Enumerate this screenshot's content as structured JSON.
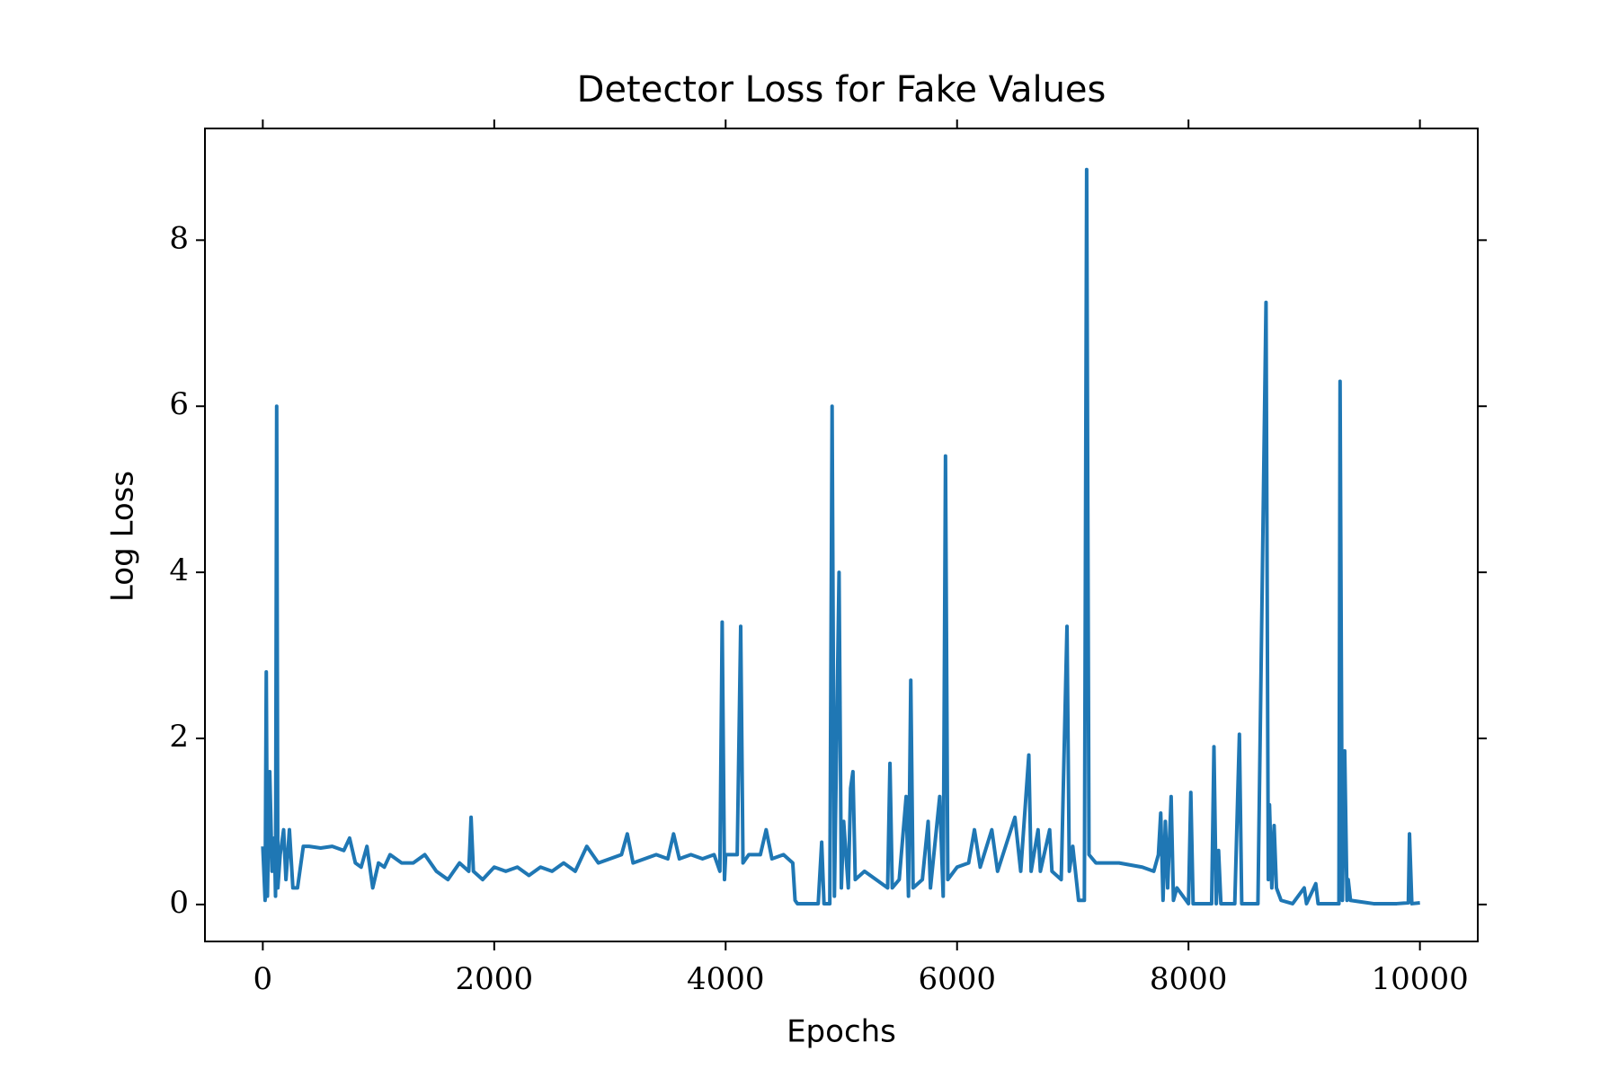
{
  "chart_data": {
    "type": "line",
    "title": "Detector Loss for Fake Values",
    "xlabel": "Epochs",
    "ylabel": "Log Loss",
    "x": [
      0,
      20,
      30,
      40,
      60,
      80,
      100,
      110,
      120,
      130,
      150,
      180,
      200,
      230,
      260,
      300,
      350,
      400,
      500,
      600,
      700,
      750,
      800,
      850,
      900,
      950,
      1000,
      1050,
      1100,
      1200,
      1300,
      1400,
      1500,
      1600,
      1700,
      1780,
      1800,
      1820,
      1900,
      2000,
      2100,
      2200,
      2300,
      2400,
      2500,
      2600,
      2700,
      2800,
      2900,
      3000,
      3100,
      3150,
      3200,
      3300,
      3400,
      3500,
      3550,
      3600,
      3700,
      3800,
      3900,
      3950,
      3970,
      3990,
      4000,
      4100,
      4130,
      4150,
      4200,
      4300,
      4350,
      4400,
      4500,
      4580,
      4600,
      4620,
      4800,
      4830,
      4850,
      4900,
      4920,
      4940,
      4980,
      5000,
      5020,
      5060,
      5080,
      5100,
      5120,
      5200,
      5300,
      5400,
      5420,
      5440,
      5500,
      5560,
      5580,
      5600,
      5620,
      5700,
      5750,
      5770,
      5850,
      5880,
      5900,
      5920,
      6000,
      6100,
      6150,
      6200,
      6300,
      6350,
      6500,
      6550,
      6620,
      6640,
      6700,
      6720,
      6800,
      6820,
      6900,
      6950,
      6970,
      7000,
      7050,
      7100,
      7120,
      7140,
      7200,
      7400,
      7600,
      7700,
      7740,
      7760,
      7780,
      7800,
      7820,
      7850,
      7870,
      7900,
      8000,
      8020,
      8040,
      8200,
      8220,
      8240,
      8260,
      8280,
      8400,
      8440,
      8460,
      8600,
      8670,
      8690,
      8700,
      8720,
      8740,
      8760,
      8800,
      8900,
      9000,
      9020,
      9100,
      9120,
      9300,
      9310,
      9330,
      9350,
      9370,
      9380,
      9400,
      9500,
      9600,
      9800,
      9900,
      9910,
      9930,
      10000
    ],
    "series": [
      {
        "color": "#1f77b4",
        "values": [
          0.7,
          0.05,
          2.8,
          0.1,
          1.6,
          0.4,
          0.8,
          0.1,
          6.0,
          0.2,
          0.6,
          0.9,
          0.3,
          0.9,
          0.2,
          0.2,
          0.7,
          0.7,
          0.68,
          0.7,
          0.65,
          0.8,
          0.5,
          0.45,
          0.7,
          0.2,
          0.5,
          0.45,
          0.6,
          0.5,
          0.5,
          0.6,
          0.4,
          0.3,
          0.5,
          0.4,
          1.05,
          0.4,
          0.3,
          0.45,
          0.4,
          0.45,
          0.35,
          0.45,
          0.4,
          0.5,
          0.4,
          0.7,
          0.5,
          0.55,
          0.6,
          0.85,
          0.5,
          0.55,
          0.6,
          0.55,
          0.85,
          0.55,
          0.6,
          0.55,
          0.6,
          0.4,
          3.4,
          0.3,
          0.6,
          0.6,
          3.35,
          0.5,
          0.6,
          0.6,
          0.9,
          0.55,
          0.6,
          0.5,
          0.05,
          0.01,
          0.01,
          0.75,
          0.01,
          0.01,
          6.0,
          0.1,
          4.0,
          0.2,
          1.0,
          0.2,
          1.4,
          1.6,
          0.3,
          0.4,
          0.3,
          0.2,
          1.7,
          0.2,
          0.3,
          1.3,
          0.1,
          2.7,
          0.2,
          0.3,
          1.0,
          0.2,
          1.3,
          0.1,
          5.4,
          0.3,
          0.45,
          0.5,
          0.9,
          0.45,
          0.9,
          0.4,
          1.05,
          0.4,
          1.8,
          0.4,
          0.9,
          0.4,
          0.9,
          0.4,
          0.3,
          3.35,
          0.4,
          0.7,
          0.05,
          0.05,
          8.85,
          0.6,
          0.5,
          0.5,
          0.45,
          0.4,
          0.6,
          1.1,
          0.05,
          1.0,
          0.2,
          1.3,
          0.05,
          0.2,
          0.01,
          1.35,
          0.01,
          0.01,
          1.9,
          0.01,
          0.65,
          0.01,
          0.01,
          2.05,
          0.01,
          0.01,
          7.25,
          0.3,
          1.2,
          0.2,
          0.95,
          0.2,
          0.05,
          0.01,
          0.2,
          0.01,
          0.25,
          0.01,
          0.01,
          6.3,
          0.05,
          1.85,
          0.05,
          0.3,
          0.05,
          0.03,
          0.01,
          0.01,
          0.02,
          0.85,
          0.01,
          0.02
        ]
      }
    ],
    "xlim": [
      -500,
      10500
    ],
    "ylim": [
      -0.445,
      9.345
    ],
    "xticks": [
      0,
      2000,
      4000,
      6000,
      8000,
      10000
    ],
    "yticks": [
      0,
      2,
      4,
      6,
      8
    ],
    "mirror_ticks": true
  }
}
